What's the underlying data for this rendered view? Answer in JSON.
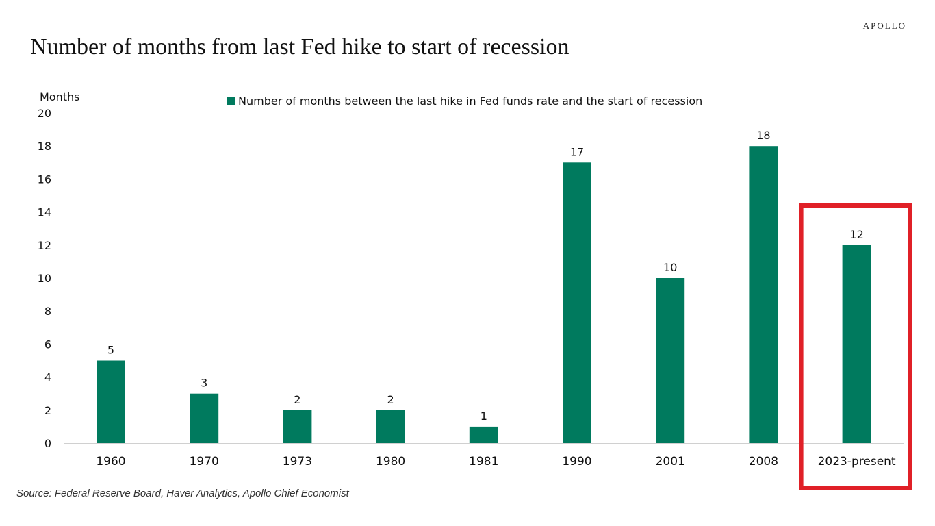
{
  "brand": "APOLLO",
  "chart_data": {
    "type": "bar",
    "title": "Number of months from last Fed hike to start of recession",
    "ylabel": "Months",
    "xlabel": "",
    "ylim": [
      0,
      20
    ],
    "yticks": [
      0,
      2,
      4,
      6,
      8,
      10,
      12,
      14,
      16,
      18,
      20
    ],
    "grid": false,
    "legend_position": "top-center",
    "categories": [
      "1960",
      "1970",
      "1973",
      "1980",
      "1981",
      "1990",
      "2001",
      "2008",
      "2023-present"
    ],
    "series": [
      {
        "name": "Number of months between the last hike in Fed funds rate and the start of recession",
        "values": [
          5,
          3,
          2,
          2,
          1,
          17,
          10,
          18,
          12
        ],
        "color": "#007A5E"
      }
    ],
    "data_labels": true,
    "highlight": {
      "category": "2023-present",
      "color": "#E02027"
    }
  },
  "source": "Source: Federal Reserve Board, Haver Analytics, Apollo Chief Economist"
}
